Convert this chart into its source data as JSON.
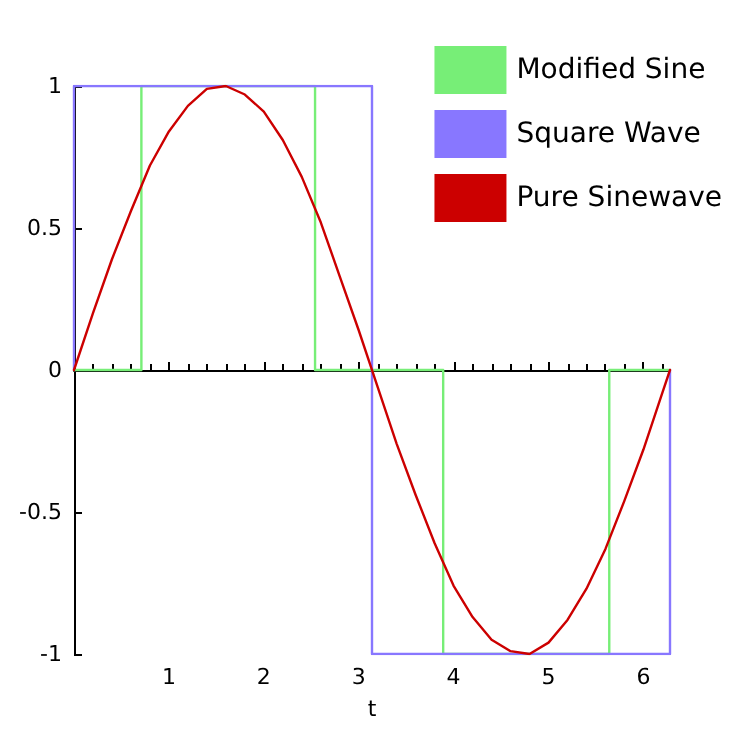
{
  "chart_data": {
    "type": "line",
    "xlabel": "t",
    "xlim": [
      0,
      6.28
    ],
    "xticks": [
      1,
      2,
      3,
      4,
      5,
      6
    ],
    "ylim": [
      -1,
      1
    ],
    "yticks": [
      -1,
      -0.5,
      0,
      0.5,
      1
    ],
    "legend": "top right",
    "marker": "none",
    "line_style": "solid",
    "series": [
      {
        "name": "Modified Sine",
        "color": "#77ee77",
        "x": [
          0,
          0.71,
          0.71,
          2.54,
          2.54,
          3.89,
          3.89,
          5.64,
          5.64,
          6.28
        ],
        "values": [
          0,
          0,
          1,
          1,
          0,
          0,
          -1,
          -1,
          0,
          0
        ]
      },
      {
        "name": "Square Wave",
        "color": "#8877ff",
        "x": [
          0,
          0,
          3.14,
          3.14,
          6.28,
          6.28
        ],
        "values": [
          0,
          1,
          1,
          -1,
          -1,
          0
        ]
      },
      {
        "name": "Pure Sinewave",
        "color": "#cc0000",
        "x": [
          0,
          0.2,
          0.4,
          0.6,
          0.8,
          1.0,
          1.2,
          1.4,
          1.6,
          1.8,
          2.0,
          2.2,
          2.4,
          2.6,
          2.8,
          3.0,
          3.2,
          3.4,
          3.6,
          3.8,
          4.0,
          4.2,
          4.4,
          4.6,
          4.8,
          5.0,
          5.2,
          5.4,
          5.6,
          5.8,
          6.0,
          6.2,
          6.28
        ],
        "values": [
          0,
          0.2,
          0.39,
          0.56,
          0.72,
          0.84,
          0.93,
          0.99,
          1.0,
          0.97,
          0.91,
          0.81,
          0.68,
          0.52,
          0.33,
          0.14,
          -0.06,
          -0.26,
          -0.44,
          -0.61,
          -0.76,
          -0.87,
          -0.95,
          -0.99,
          -1.0,
          -0.96,
          -0.88,
          -0.77,
          -0.63,
          -0.46,
          -0.28,
          -0.08,
          0
        ]
      }
    ]
  }
}
